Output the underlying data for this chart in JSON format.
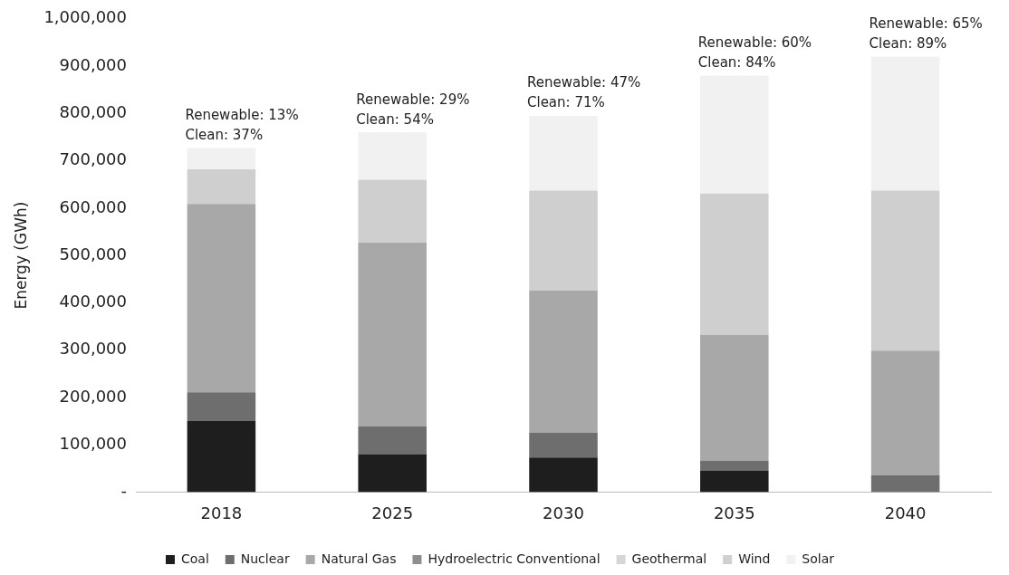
{
  "chart_data": {
    "type": "bar",
    "stacked": true,
    "ylabel": "Energy (GWh)",
    "categories": [
      "2018",
      "2025",
      "2030",
      "2035",
      "2040"
    ],
    "series": [
      {
        "name": "Coal",
        "color": "#1e1e1e",
        "values": [
          150000,
          80000,
          73000,
          45000,
          0
        ]
      },
      {
        "name": "Nuclear",
        "color": "#6e6e6e",
        "values": [
          61000,
          59000,
          52000,
          21000,
          35000
        ]
      },
      {
        "name": "Natural Gas",
        "color": "#a8a8a8",
        "values": [
          398000,
          388000,
          301000,
          266000,
          264000
        ]
      },
      {
        "name": "Hydroelectric Conventional",
        "color": "#8e8e8e",
        "values": [
          null,
          null,
          null,
          null,
          null
        ]
      },
      {
        "name": "Geothermal",
        "color": "#d6d6d6",
        "values": [
          null,
          null,
          null,
          null,
          null
        ]
      },
      {
        "name": "Wind",
        "color": "#cfcfcf",
        "values": [
          73000,
          133000,
          211000,
          299000,
          338000
        ]
      },
      {
        "name": "Solar",
        "color": "#f1f1f1",
        "values": [
          45000,
          100000,
          158000,
          249000,
          283000
        ]
      }
    ],
    "ylim": [
      0,
      1000000
    ],
    "yticks": [
      {
        "value": 0,
        "label": "-"
      },
      {
        "value": 100000,
        "label": "100,000"
      },
      {
        "value": 200000,
        "label": "200,000"
      },
      {
        "value": 300000,
        "label": "300,000"
      },
      {
        "value": 400000,
        "label": "400,000"
      },
      {
        "value": 500000,
        "label": "500,000"
      },
      {
        "value": 600000,
        "label": "600,000"
      },
      {
        "value": 700000,
        "label": "700,000"
      },
      {
        "value": 800000,
        "label": "800,000"
      },
      {
        "value": 900000,
        "label": "900,000"
      },
      {
        "value": 1000000,
        "label": "1,000,000"
      }
    ],
    "grid": false,
    "legend": "bottom",
    "annotations": [
      "Renewable: 13%\nClean: 37%",
      "Renewable: 29%\nClean: 54%",
      "Renewable: 47%\nClean: 71%",
      "Renewable: 60%\nClean: 84%",
      "Renewable: 65%\nClean: 89%"
    ]
  }
}
